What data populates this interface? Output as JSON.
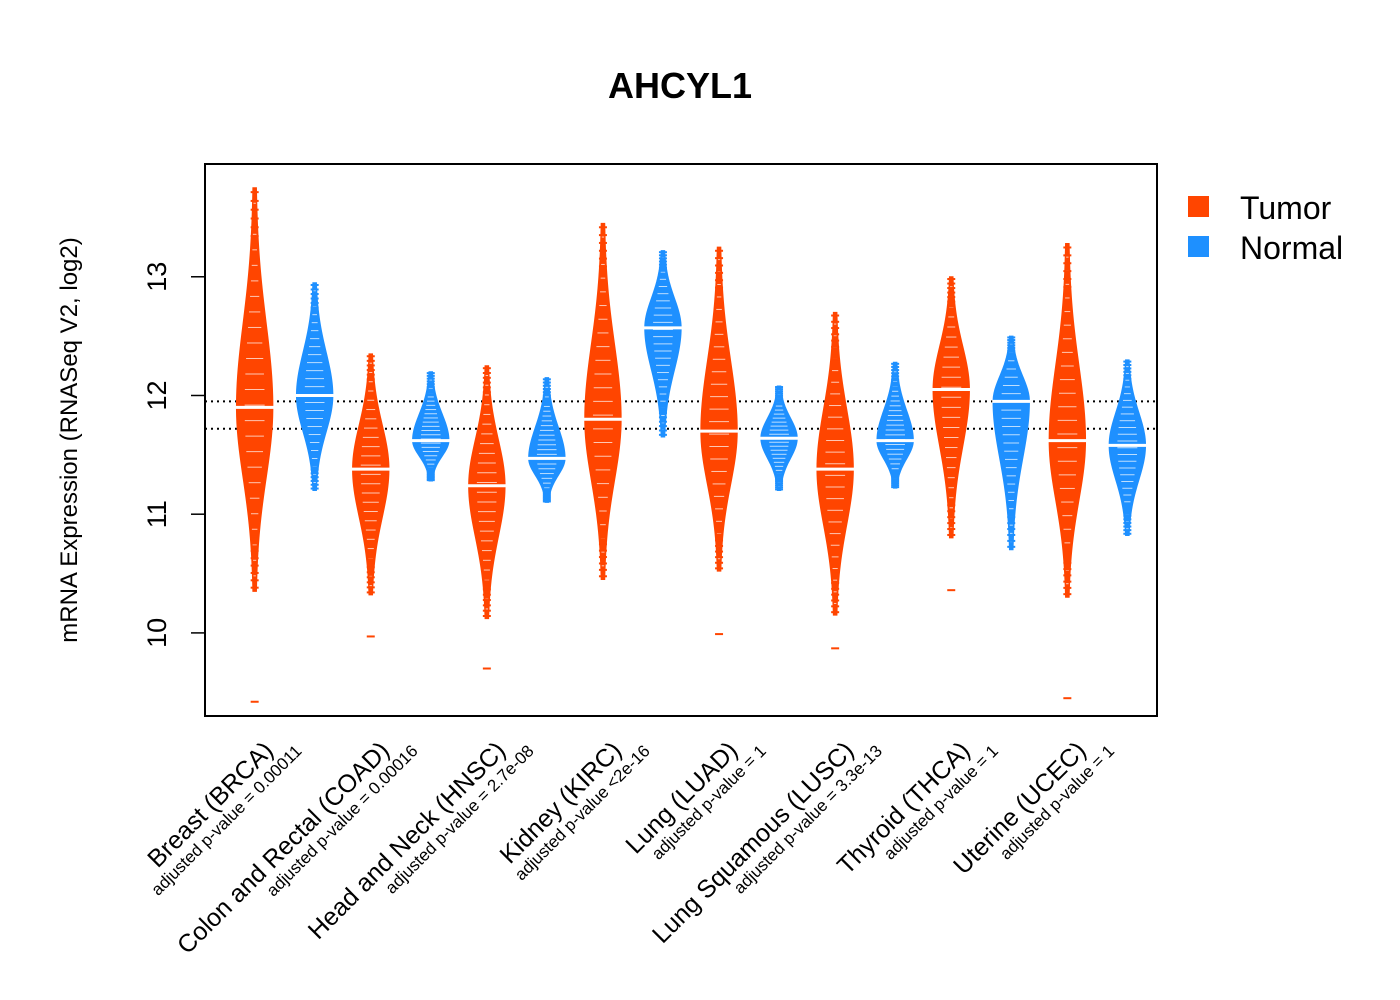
{
  "chart_data": {
    "type": "violin",
    "title": "AHCYL1",
    "ylabel": "mRNA Expression (RNASeq V2, log2)",
    "ylim": [
      9.3,
      13.95
    ],
    "yticks": [
      "10",
      "11",
      "12",
      "13"
    ],
    "reference_lines": [
      11.72,
      11.95
    ],
    "legend": {
      "position": "top-right",
      "entries": [
        {
          "label": "Tumor",
          "color": "#FF4500"
        },
        {
          "label": "Normal",
          "color": "#1E90FF"
        }
      ]
    },
    "groups": [
      {
        "name": "Breast (BRCA)",
        "pvalue_label": "adjusted p-value = 0.00011",
        "tumor": {
          "median": 11.9,
          "low": 10.35,
          "high": 13.75,
          "outliers": [
            9.42
          ]
        },
        "normal": {
          "median": 12.0,
          "low": 11.2,
          "high": 12.95,
          "outliers": []
        }
      },
      {
        "name": "Colon and Rectal (COAD)",
        "pvalue_label": "adjusted p-value = 0.00016",
        "tumor": {
          "median": 11.38,
          "low": 10.32,
          "high": 12.35,
          "outliers": [
            9.97
          ]
        },
        "normal": {
          "median": 11.62,
          "low": 11.28,
          "high": 12.2,
          "outliers": []
        }
      },
      {
        "name": "Head and Neck (HNSC)",
        "pvalue_label": "adjusted p-value = 2.7e-08",
        "tumor": {
          "median": 11.24,
          "low": 10.12,
          "high": 12.25,
          "outliers": [
            9.7
          ]
        },
        "normal": {
          "median": 11.47,
          "low": 11.1,
          "high": 12.15,
          "outliers": []
        }
      },
      {
        "name": "Kidney (KIRC)",
        "pvalue_label": "adjusted p-value <2e-16",
        "tumor": {
          "median": 11.8,
          "low": 10.45,
          "high": 13.45,
          "outliers": []
        },
        "normal": {
          "median": 12.57,
          "low": 11.65,
          "high": 13.22,
          "outliers": []
        }
      },
      {
        "name": "Lung (LUAD)",
        "pvalue_label": "adjusted p-value = 1",
        "tumor": {
          "median": 11.7,
          "low": 10.52,
          "high": 13.25,
          "outliers": [
            9.99
          ]
        },
        "normal": {
          "median": 11.64,
          "low": 11.2,
          "high": 12.08,
          "outliers": []
        }
      },
      {
        "name": "Lung Squamous (LUSC)",
        "pvalue_label": "adjusted p-value = 3.3e-13",
        "tumor": {
          "median": 11.38,
          "low": 10.15,
          "high": 12.7,
          "outliers": [
            9.87
          ]
        },
        "normal": {
          "median": 11.62,
          "low": 11.22,
          "high": 12.28,
          "outliers": []
        }
      },
      {
        "name": "Thyroid (THCA)",
        "pvalue_label": "adjusted p-value = 1",
        "tumor": {
          "median": 12.05,
          "low": 10.8,
          "high": 13.0,
          "outliers": [
            10.36
          ]
        },
        "normal": {
          "median": 11.95,
          "low": 10.7,
          "high": 12.5,
          "outliers": []
        }
      },
      {
        "name": "Uterine (UCEC)",
        "pvalue_label": "adjusted p-value = 1",
        "tumor": {
          "median": 11.62,
          "low": 10.3,
          "high": 13.28,
          "outliers": [
            9.45
          ]
        },
        "normal": {
          "median": 11.58,
          "low": 10.82,
          "high": 12.3,
          "outliers": []
        }
      }
    ]
  }
}
